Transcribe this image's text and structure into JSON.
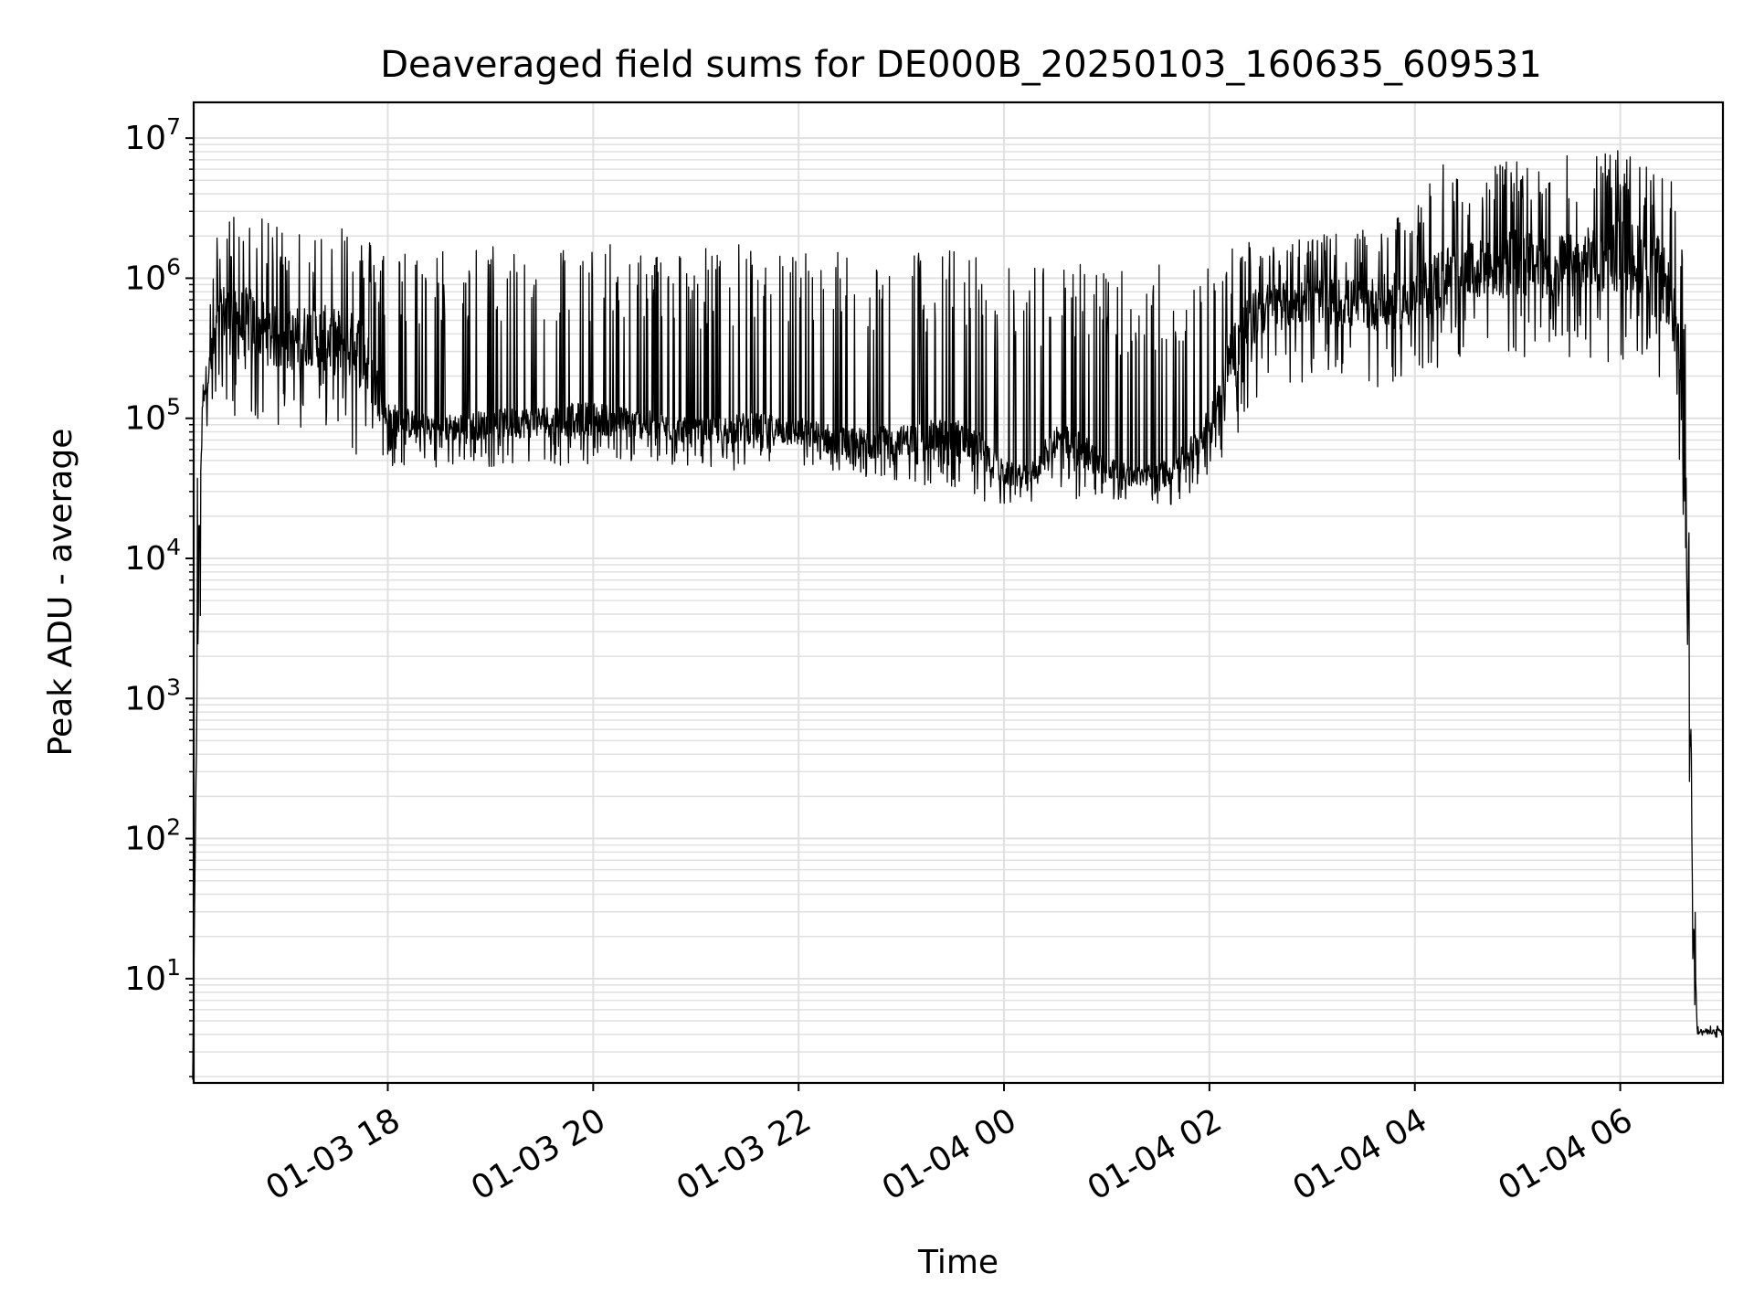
{
  "chart_data": {
    "type": "line",
    "title": "Deaveraged field sums for DE000B_20250103_160635_609531",
    "xlabel": "Time",
    "ylabel": "Peak ADU - average",
    "yscale": "log",
    "ylim": [
      1.8,
      18000000
    ],
    "grid": true,
    "line_color": "#000000",
    "grid_color": "#e0e0e0",
    "xlim": [
      "2025-01-03T16:06:35",
      "2025-01-04T07:00:00"
    ],
    "x_ticks": [
      {
        "t": "2025-01-03T18:00",
        "label": "01-03 18"
      },
      {
        "t": "2025-01-03T20:00",
        "label": "01-03 20"
      },
      {
        "t": "2025-01-03T22:00",
        "label": "01-03 22"
      },
      {
        "t": "2025-01-04T00:00",
        "label": "01-04 00"
      },
      {
        "t": "2025-01-04T02:00",
        "label": "01-04 02"
      },
      {
        "t": "2025-01-04T04:00",
        "label": "01-04 04"
      },
      {
        "t": "2025-01-04T06:00",
        "label": "01-04 06"
      }
    ],
    "y_ticks": [
      {
        "value": 10,
        "base": "10",
        "exp": "1"
      },
      {
        "value": 100,
        "base": "10",
        "exp": "2"
      },
      {
        "value": 1000,
        "base": "10",
        "exp": "3"
      },
      {
        "value": 10000,
        "base": "10",
        "exp": "4"
      },
      {
        "value": 100000,
        "base": "10",
        "exp": "5"
      },
      {
        "value": 1000000,
        "base": "10",
        "exp": "6"
      },
      {
        "value": 10000000,
        "base": "10",
        "exp": "7"
      }
    ],
    "series": [
      {
        "x": [
          "2025-01-03T16:06",
          "2025-01-03T16:08",
          "2025-01-03T16:10",
          "2025-01-03T16:12",
          "2025-01-03T16:15",
          "2025-01-03T16:20",
          "2025-01-03T16:25",
          "2025-01-03T16:30",
          "2025-01-03T16:40",
          "2025-01-03T16:50",
          "2025-01-03T17:00",
          "2025-01-03T17:15",
          "2025-01-03T17:30",
          "2025-01-03T17:45",
          "2025-01-03T18:00",
          "2025-01-03T18:15",
          "2025-01-03T18:30",
          "2025-01-03T19:00",
          "2025-01-03T19:30",
          "2025-01-03T20:00",
          "2025-01-03T20:30",
          "2025-01-03T21:00",
          "2025-01-03T21:30",
          "2025-01-03T22:00",
          "2025-01-03T22:30",
          "2025-01-03T23:00",
          "2025-01-03T23:30",
          "2025-01-03T23:45",
          "2025-01-04T00:00",
          "2025-01-04T00:15",
          "2025-01-04T00:30",
          "2025-01-04T00:45",
          "2025-01-04T01:00",
          "2025-01-04T01:15",
          "2025-01-04T01:30",
          "2025-01-04T01:45",
          "2025-01-04T02:00",
          "2025-01-04T02:15",
          "2025-01-04T02:30",
          "2025-01-04T03:00",
          "2025-01-04T03:30",
          "2025-01-04T04:00",
          "2025-01-04T04:15",
          "2025-01-04T04:30",
          "2025-01-04T05:00",
          "2025-01-04T05:30",
          "2025-01-04T06:00",
          "2025-01-04T06:20",
          "2025-01-04T06:30",
          "2025-01-04T06:35",
          "2025-01-04T06:38",
          "2025-01-04T06:40",
          "2025-01-04T06:42",
          "2025-01-04T06:45",
          "2025-01-04T06:50",
          "2025-01-04T07:00"
        ],
        "typical": [
          1.9,
          300,
          20000,
          150000,
          200000,
          400000,
          600000,
          450000,
          500000,
          400000,
          350000,
          400000,
          350000,
          300000,
          100000,
          90000,
          85000,
          90000,
          95000,
          100000,
          90000,
          80000,
          85000,
          80000,
          65000,
          70000,
          75000,
          60000,
          40000,
          38000,
          70000,
          60000,
          45000,
          38000,
          40000,
          50000,
          90000,
          350000,
          600000,
          700000,
          650000,
          700000,
          1000000,
          1100000,
          1300000,
          1200000,
          1500000,
          1300000,
          700000,
          200000,
          30000,
          4000,
          100,
          4.2,
          4.2,
          4.2
        ],
        "peak": [
          1.9,
          100000,
          100000,
          250000,
          600000,
          2000000,
          2500000,
          3000000,
          3000000,
          2500000,
          2800000,
          2000000,
          3500000,
          2000000,
          1800000,
          1700000,
          1700000,
          1800000,
          1900000,
          1800000,
          1700000,
          1700000,
          1800000,
          1700000,
          1700000,
          1600000,
          1700000,
          1500000,
          1200000,
          1300000,
          1400000,
          1300000,
          1300000,
          1400000,
          1300000,
          1300000,
          1300000,
          1800000,
          2000000,
          2000000,
          2200000,
          3000000,
          7000000,
          6000000,
          7000000,
          8000000,
          8500000,
          6000000,
          5000000,
          3000000,
          500000,
          60000,
          1000,
          4.6,
          4.6,
          4.6
        ],
        "trough": [
          1.9,
          300,
          1000,
          40000,
          100000,
          100000,
          100000,
          80000,
          100000,
          90000,
          80000,
          90000,
          70000,
          50000,
          45000,
          45000,
          45000,
          45000,
          45000,
          45000,
          45000,
          45000,
          40000,
          40000,
          30000,
          35000,
          30000,
          25000,
          22000,
          23000,
          30000,
          25000,
          25000,
          24000,
          23000,
          25000,
          40000,
          70000,
          120000,
          200000,
          150000,
          200000,
          200000,
          300000,
          250000,
          250000,
          250000,
          200000,
          150000,
          30000,
          4000,
          200,
          10,
          3.8,
          3.8,
          3.8
        ]
      }
    ]
  }
}
